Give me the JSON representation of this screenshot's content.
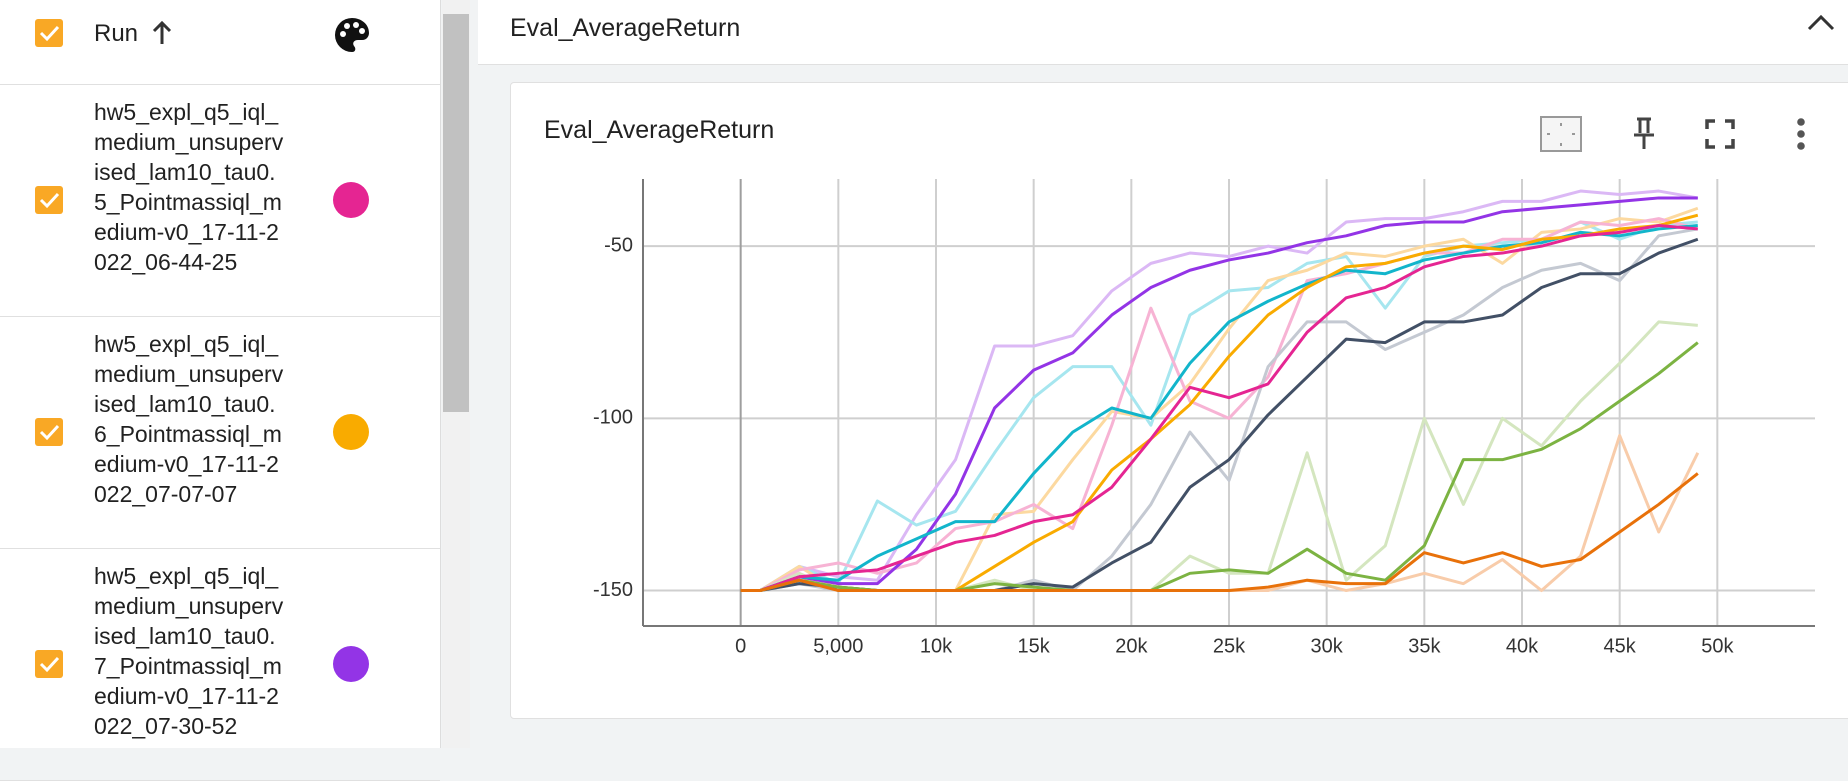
{
  "sidebar": {
    "header": "Run",
    "runs": [
      {
        "name": "hw5_expl_q5_iql_medium_unsupervised_lam10_tau0.5_Pointmassiql_medium-v0_17-11-2022_06-44-25",
        "color": "#e52592"
      },
      {
        "name": "hw5_expl_q5_iql_medium_unsupervised_lam10_tau0.6_Pointmassiql_medium-v0_17-11-2022_07-07-07",
        "color": "#f9ab00"
      },
      {
        "name": "hw5_expl_q5_iql_medium_unsupervised_lam10_tau0.7_Pointmassiql_medium-v0_17-11-2022_07-30-52",
        "color": "#9334e6"
      }
    ]
  },
  "section_title": "Eval_AverageReturn",
  "chart_data": {
    "type": "line",
    "title": "Eval_AverageReturn",
    "x": [
      0,
      1000,
      3000,
      5000,
      7000,
      9000,
      11000,
      13000,
      15000,
      17000,
      19000,
      21000,
      23000,
      25000,
      27000,
      29000,
      31000,
      33000,
      35000,
      37000,
      39000,
      41000,
      43000,
      45000,
      47000,
      49000
    ],
    "xlim": [
      -5000,
      55000
    ],
    "xticks": [
      0,
      {
        "value": 5000,
        "label": "5,000"
      },
      {
        "value": 10000,
        "label": "10k"
      },
      {
        "value": 15000,
        "label": "15k"
      },
      {
        "value": 20000,
        "label": "20k"
      },
      {
        "value": 25000,
        "label": "25k"
      },
      {
        "value": 30000,
        "label": "30k"
      },
      {
        "value": 35000,
        "label": "35k"
      },
      {
        "value": 40000,
        "label": "40k"
      },
      {
        "value": 45000,
        "label": "45k"
      },
      {
        "value": 50000,
        "label": "50k"
      }
    ],
    "ylim": [
      -160.3,
      -30.5
    ],
    "yticks": [
      -150,
      -100,
      -50
    ],
    "grid": true,
    "series": [
      {
        "color": "#dbb8f5",
        "values": [
          -150,
          -150,
          -143,
          -146,
          -147,
          -128,
          -112,
          -79,
          -79,
          -76,
          -63,
          -55,
          -52,
          -53,
          -50,
          -52,
          -43,
          -42,
          -42,
          -40,
          -37,
          -37,
          -34,
          -35,
          -34,
          -36
        ]
      },
      {
        "color": "#a6e6ef",
        "values": [
          -150,
          -150,
          -143,
          -148,
          -124,
          -131,
          -127,
          -110,
          -94,
          -85,
          -85,
          -102,
          -70,
          -63,
          -62,
          -55,
          -53,
          -68,
          -53,
          -50,
          -49,
          -48,
          -43,
          -48,
          -44,
          -43
        ]
      },
      {
        "color": "#fcd9a0",
        "values": [
          -150,
          -150,
          -143,
          -150,
          -150,
          -150,
          -150,
          -128,
          -127,
          -112,
          -98,
          -100,
          -90,
          -74,
          -60,
          -57,
          -52,
          -53,
          -50,
          -48,
          -55,
          -46,
          -45,
          -42,
          -43,
          -39
        ]
      },
      {
        "color": "#f7b3d4",
        "values": [
          -150,
          -150,
          -144,
          -142,
          -145,
          -142,
          -132,
          -130,
          -125,
          -132,
          -102,
          -68,
          -95,
          -100,
          -88,
          -60,
          -58,
          -55,
          -52,
          -52,
          -48,
          -48,
          -43,
          -44,
          -42,
          -45
        ]
      },
      {
        "color": "#c4c9d2",
        "values": [
          -150,
          -150,
          -148,
          -150,
          -150,
          -150,
          -150,
          -150,
          -147,
          -150,
          -140,
          -125,
          -104,
          -118,
          -85,
          -72,
          -72,
          -80,
          -75,
          -70,
          -62,
          -57,
          -55,
          -60,
          -47,
          -45
        ]
      },
      {
        "color": "#d4e6bf",
        "values": [
          -150,
          -150,
          -145,
          -150,
          -150,
          -150,
          -150,
          -147,
          -150,
          -150,
          -150,
          -150,
          -140,
          -145,
          -145,
          -110,
          -147,
          -137,
          -100,
          -125,
          -100,
          -108,
          -95,
          -84,
          -72,
          -73
        ]
      },
      {
        "color": "#f8ccaa",
        "values": [
          -150,
          -150,
          -146,
          -150,
          -150,
          -150,
          -150,
          -150,
          -150,
          -150,
          -150,
          -150,
          -150,
          -150,
          -150,
          -147,
          -150,
          -148,
          -145,
          -148,
          -141,
          -150,
          -140,
          -105,
          -133,
          -110
        ]
      },
      {
        "color": "#9334e6",
        "values": [
          -150,
          -150,
          -146,
          -148,
          -148,
          -138,
          -122,
          -97,
          -86,
          -81,
          -70,
          -62,
          -57,
          -54,
          -52,
          -49,
          -47,
          -44,
          -43,
          -43,
          -40,
          -39,
          -38,
          -37,
          -36,
          -36
        ]
      },
      {
        "color": "#12b5cb",
        "values": [
          -150,
          -150,
          -146,
          -147,
          -140,
          -135,
          -130,
          -130,
          -116,
          -104,
          -97,
          -100,
          -84,
          -72,
          -66,
          -61,
          -57,
          -58,
          -54,
          -52,
          -50,
          -49,
          -46,
          -47,
          -45,
          -44
        ]
      },
      {
        "color": "#f9ab00",
        "values": [
          -150,
          -150,
          -147,
          -149,
          -150,
          -150,
          -150,
          -143,
          -136,
          -130,
          -115,
          -106,
          -96,
          -82,
          -70,
          -62,
          -56,
          -55,
          -52,
          -50,
          -51,
          -48,
          -47,
          -45,
          -44,
          -41
        ]
      },
      {
        "color": "#e52592",
        "values": [
          -150,
          -150,
          -146,
          -145,
          -144,
          -140,
          -136,
          -134,
          -130,
          -128,
          -120,
          -106,
          -91,
          -94,
          -90,
          -75,
          -65,
          -62,
          -56,
          -53,
          -52,
          -50,
          -47,
          -46,
          -44,
          -45
        ]
      },
      {
        "color": "#425066",
        "values": [
          -150,
          -150,
          -148,
          -149,
          -150,
          -150,
          -150,
          -150,
          -148,
          -149,
          -142,
          -136,
          -120,
          -112,
          -99,
          -88,
          -77,
          -78,
          -72,
          -72,
          -70,
          -62,
          -58,
          -58,
          -52,
          -48
        ]
      },
      {
        "color": "#7cb342",
        "values": [
          -150,
          -150,
          -147,
          -149,
          -150,
          -150,
          -150,
          -148,
          -149,
          -150,
          -150,
          -150,
          -145,
          -144,
          -145,
          -138,
          -145,
          -147,
          -137,
          -112,
          -112,
          -109,
          -103,
          -95,
          -87,
          -78
        ]
      },
      {
        "color": "#e8710a",
        "values": [
          -150,
          -150,
          -147,
          -150,
          -150,
          -150,
          -150,
          -150,
          -150,
          -150,
          -150,
          -150,
          -150,
          -150,
          -149,
          -147,
          -148,
          -148,
          -139,
          -142,
          -139,
          -143,
          -141,
          -133,
          -125,
          -116
        ]
      }
    ]
  }
}
